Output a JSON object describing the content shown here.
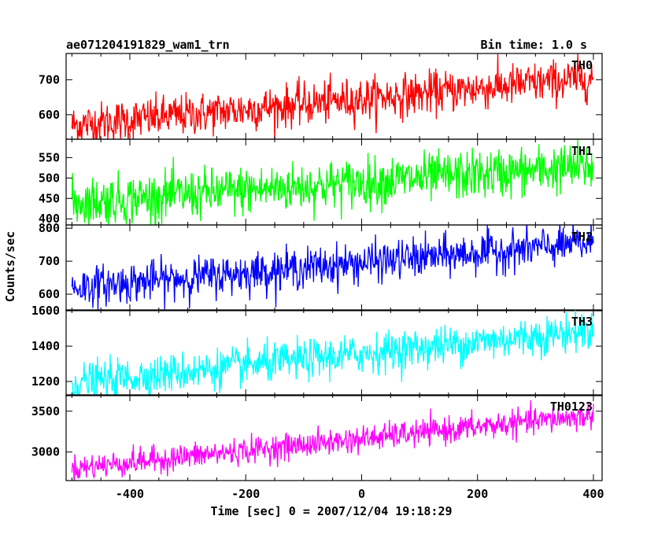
{
  "header": {
    "left_title": "ae071204191829_wam1_trn",
    "right_title": "Bin time: 1.0 s"
  },
  "chart_data": {
    "type": "line",
    "title": "ae071204191829_wam1_trn",
    "subtitle": "Bin time: 1.0 s",
    "xlabel": "Time [sec] 0 = 2007/12/04 19:18:29",
    "ylabel": "Counts/sec",
    "xlim": [
      -510,
      415
    ],
    "x_ticks": [
      -400,
      -200,
      0,
      200,
      400
    ],
    "x_range_data": [
      -500,
      400
    ],
    "bin_time_s": 1.0,
    "grid": false,
    "panels": [
      {
        "name": "TH0",
        "color": "#ff0000",
        "ylim": [
          530,
          775
        ],
        "y_ticks": [
          600,
          700
        ],
        "trend_start": 570,
        "trend_end": 705,
        "noise": 30
      },
      {
        "name": "TH1",
        "color": "#00ff00",
        "ylim": [
          385,
          595
        ],
        "y_ticks": [
          400,
          450,
          500,
          550
        ],
        "trend_start": 440,
        "trend_end": 528,
        "noise": 30
      },
      {
        "name": "TH2",
        "color": "#0000ff",
        "ylim": [
          550,
          810
        ],
        "y_ticks": [
          600,
          700,
          800
        ],
        "trend_start": 620,
        "trend_end": 755,
        "noise": 30
      },
      {
        "name": "TH3",
        "color": "#00ffff",
        "ylim": [
          1120,
          1605
        ],
        "y_ticks": [
          1200,
          1400,
          1600
        ],
        "trend_start": 1190,
        "trend_end": 1490,
        "noise": 55
      },
      {
        "name": "TH0123",
        "color": "#ff00ff",
        "ylim": [
          2650,
          3700
        ],
        "y_ticks": [
          3000,
          3500
        ],
        "trend_start": 2800,
        "trend_end": 3450,
        "noise": 80
      }
    ]
  }
}
